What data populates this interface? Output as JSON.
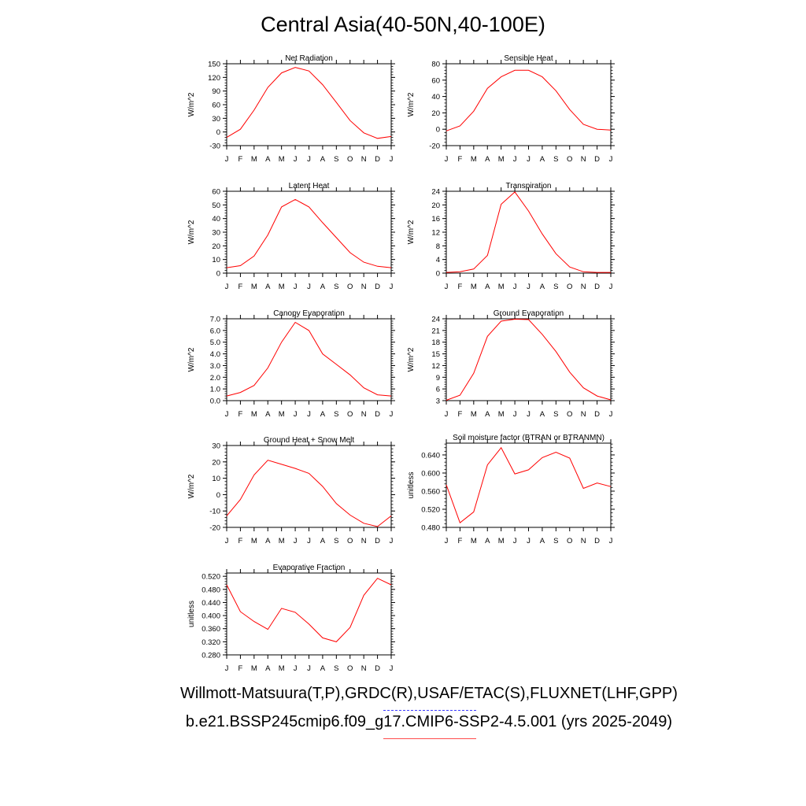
{
  "title": "Central Asia(40-50N,40-100E)",
  "footer": {
    "obs_sources": "Willmott-Matsuura(T,P),GRDC(R),USAF/ETAC(S),FLUXNET(LHF,GPP)",
    "model_case": "b.e21.BSSP245cmip6.f09_g17.CMIP6-SSP2-4.5.001 (yrs 2025-2049)"
  },
  "colors": {
    "model_line": "#ff0000",
    "obs_line": "#3b3bff",
    "axis": "#000000"
  },
  "chart_data": [
    {
      "type": "line",
      "title": "Net Radiation",
      "ylabel": "W/m^2",
      "categories": [
        "J",
        "F",
        "M",
        "A",
        "M",
        "J",
        "J",
        "A",
        "S",
        "O",
        "N",
        "D",
        "J"
      ],
      "yticks": [
        -30,
        0,
        30,
        60,
        90,
        120,
        150
      ],
      "ytick_labels": [
        "-30",
        "0",
        "30",
        "60",
        "90",
        "120",
        "150"
      ],
      "ylim": [
        -30,
        150
      ],
      "values": [
        -12,
        6,
        48,
        98,
        130,
        142,
        134,
        104,
        65,
        25,
        -2,
        -14,
        -10
      ]
    },
    {
      "type": "line",
      "title": "Sensible Heat",
      "ylabel": "W/m^2",
      "categories": [
        "J",
        "F",
        "M",
        "A",
        "M",
        "J",
        "J",
        "A",
        "S",
        "O",
        "N",
        "D",
        "J"
      ],
      "yticks": [
        -20,
        0,
        20,
        40,
        60,
        80
      ],
      "ytick_labels": [
        "-20",
        "0",
        "20",
        "40",
        "60",
        "80"
      ],
      "ylim": [
        -20,
        80
      ],
      "values": [
        -2,
        4,
        22,
        50,
        64,
        72,
        72,
        64,
        47,
        24,
        6,
        0,
        -1
      ]
    },
    {
      "type": "line",
      "title": "Latent Heat",
      "ylabel": "W/m^2",
      "categories": [
        "J",
        "F",
        "M",
        "A",
        "M",
        "J",
        "J",
        "A",
        "S",
        "O",
        "N",
        "D",
        "J"
      ],
      "yticks": [
        0,
        10,
        20,
        30,
        40,
        50,
        60
      ],
      "ytick_labels": [
        "0",
        "10",
        "20",
        "30",
        "40",
        "50",
        "60"
      ],
      "ylim": [
        0,
        60
      ],
      "values": [
        4,
        5.5,
        12.5,
        28,
        48.5,
        54,
        48.5,
        37,
        26,
        15,
        8,
        5,
        4
      ]
    },
    {
      "type": "line",
      "title": "Transpiration",
      "ylabel": "W/m^2",
      "categories": [
        "J",
        "F",
        "M",
        "A",
        "M",
        "J",
        "J",
        "A",
        "S",
        "O",
        "N",
        "D",
        "J"
      ],
      "yticks": [
        0,
        4,
        8,
        12,
        16,
        20,
        24
      ],
      "ytick_labels": [
        "0",
        "4",
        "8",
        "12",
        "16",
        "20",
        "24"
      ],
      "ylim": [
        0,
        24
      ],
      "values": [
        0.2,
        0.4,
        1.2,
        5.2,
        20.2,
        23.8,
        18.2,
        11.5,
        5.7,
        1.8,
        0.4,
        0.2,
        0.2
      ]
    },
    {
      "type": "line",
      "title": "Canopy Evaporation",
      "ylabel": "W/m^2",
      "categories": [
        "J",
        "F",
        "M",
        "A",
        "M",
        "J",
        "J",
        "A",
        "S",
        "O",
        "N",
        "D",
        "J"
      ],
      "yticks": [
        0,
        1,
        2,
        3,
        4,
        5,
        6,
        7
      ],
      "ytick_labels": [
        "0.0",
        "1.0",
        "2.0",
        "3.0",
        "4.0",
        "5.0",
        "6.0",
        "7.0"
      ],
      "ylim": [
        0,
        7
      ],
      "values": [
        0.4,
        0.7,
        1.3,
        2.8,
        5.0,
        6.7,
        6.0,
        4.0,
        3.1,
        2.2,
        1.1,
        0.5,
        0.4
      ]
    },
    {
      "type": "line",
      "title": "Ground Evaporation",
      "ylabel": "W/m^2",
      "categories": [
        "J",
        "F",
        "M",
        "A",
        "M",
        "J",
        "J",
        "A",
        "S",
        "O",
        "N",
        "D",
        "J"
      ],
      "yticks": [
        3,
        6,
        9,
        12,
        15,
        18,
        21,
        24
      ],
      "ytick_labels": [
        "3",
        "6",
        "9",
        "12",
        "15",
        "18",
        "21",
        "24"
      ],
      "ylim": [
        3,
        24
      ],
      "values": [
        3.1,
        4.4,
        10,
        19.5,
        23.4,
        23.9,
        23.8,
        20,
        15.6,
        10.3,
        6.3,
        4.2,
        3.2
      ]
    },
    {
      "type": "line",
      "title": "Ground Heat + Snow Melt",
      "ylabel": "W/m^2",
      "categories": [
        "J",
        "F",
        "M",
        "A",
        "M",
        "J",
        "J",
        "A",
        "S",
        "O",
        "N",
        "D",
        "J"
      ],
      "yticks": [
        -20,
        -10,
        0,
        10,
        20,
        30
      ],
      "ytick_labels": [
        "-20",
        "-10",
        "0",
        "10",
        "20",
        "30"
      ],
      "ylim": [
        -20,
        30
      ],
      "values": [
        -13,
        -3,
        12,
        21,
        18.5,
        16,
        13,
        5,
        -5.5,
        -12.5,
        -17.5,
        -19.5,
        -13
      ]
    },
    {
      "type": "line",
      "title": "Soil moisture factor (BTRAN or BTRANMN)",
      "ylabel": "unitless",
      "categories": [
        "J",
        "F",
        "M",
        "A",
        "M",
        "J",
        "J",
        "A",
        "S",
        "O",
        "N",
        "D",
        "J"
      ],
      "yticks": [
        0.48,
        0.52,
        0.56,
        0.6,
        0.64
      ],
      "ytick_labels": [
        "0.480",
        "0.520",
        "0.560",
        "0.600",
        "0.640"
      ],
      "ylim": [
        0.48,
        0.666
      ],
      "values": [
        0.574,
        0.49,
        0.514,
        0.618,
        0.656,
        0.598,
        0.607,
        0.634,
        0.646,
        0.633,
        0.566,
        0.578,
        0.57
      ]
    },
    {
      "type": "line",
      "title": "Evaporative Fraction",
      "ylabel": "unitless",
      "categories": [
        "J",
        "F",
        "M",
        "A",
        "M",
        "J",
        "J",
        "A",
        "S",
        "O",
        "N",
        "D",
        "J"
      ],
      "yticks": [
        0.28,
        0.32,
        0.36,
        0.4,
        0.44,
        0.48,
        0.52
      ],
      "ytick_labels": [
        "0.280",
        "0.320",
        "0.360",
        "0.400",
        "0.440",
        "0.480",
        "0.520"
      ],
      "ylim": [
        0.28,
        0.53
      ],
      "values": [
        0.494,
        0.412,
        0.382,
        0.358,
        0.422,
        0.41,
        0.374,
        0.332,
        0.32,
        0.364,
        0.462,
        0.514,
        0.494
      ]
    }
  ]
}
